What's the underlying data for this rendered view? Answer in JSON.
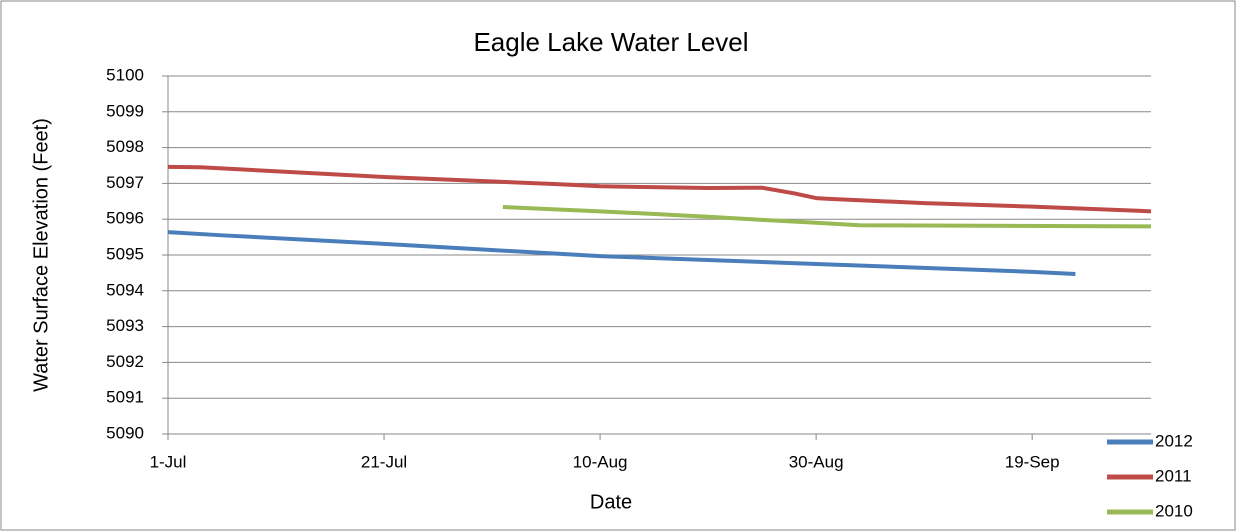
{
  "chart_data": {
    "type": "line",
    "title": "Eagle Lake Water Level",
    "x_label": "Date",
    "y_label": "Water Surface Elevation (Feet)",
    "xlim": [
      0,
      91
    ],
    "ylim": [
      5090,
      5100
    ],
    "xticks": [
      {
        "value": 0,
        "label": "1-Jul"
      },
      {
        "value": 20,
        "label": "21-Jul"
      },
      {
        "value": 40,
        "label": "10-Aug"
      },
      {
        "value": 60,
        "label": "30-Aug"
      },
      {
        "value": 80,
        "label": "19-Sep"
      }
    ],
    "yticks": [
      5090,
      5091,
      5092,
      5093,
      5094,
      5095,
      5096,
      5097,
      5098,
      5099,
      5100
    ],
    "grid": true,
    "legend": "lower right",
    "series": [
      {
        "name": "2012",
        "color": "#4a7ebb",
        "x": [
          0,
          5,
          20,
          40,
          60,
          80,
          84
        ],
        "values": [
          5095.64,
          5095.55,
          5095.31,
          5094.97,
          5094.75,
          5094.53,
          5094.47
        ]
      },
      {
        "name": "2011",
        "color": "#be4b48",
        "x": [
          0,
          3,
          20,
          36,
          40,
          50,
          54,
          55,
          58,
          60,
          61,
          70,
          80,
          91
        ],
        "values": [
          5097.46,
          5097.45,
          5097.18,
          5096.98,
          5096.92,
          5096.87,
          5096.88,
          5096.88,
          5096.72,
          5096.59,
          5096.57,
          5096.45,
          5096.35,
          5096.22
        ]
      },
      {
        "name": "2010",
        "color": "#98b954",
        "x": [
          31,
          40,
          50,
          55,
          60,
          64,
          91
        ],
        "values": [
          5096.34,
          5096.22,
          5096.07,
          5095.98,
          5095.9,
          5095.83,
          5095.8
        ]
      }
    ]
  }
}
